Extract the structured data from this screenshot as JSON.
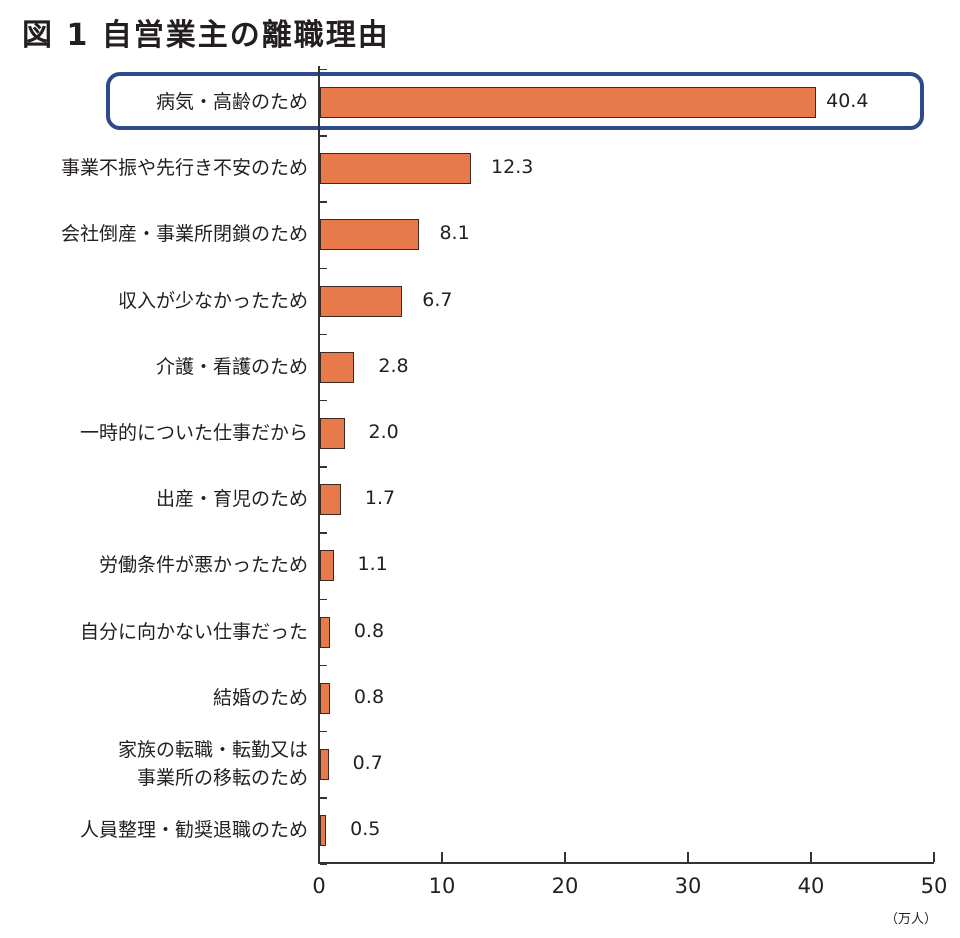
{
  "title": "図 1  自営業主の離職理由",
  "unit_label": "（万人）",
  "colors": {
    "bar": "#e8794b",
    "bar_border": "#3a2a22",
    "highlight_border": "#2e4a8c",
    "axis": "#333333"
  },
  "x_ticks": [
    "0",
    "10",
    "20",
    "30",
    "40",
    "50"
  ],
  "rows": [
    {
      "label": "病気・高齢のため",
      "value": "40.4"
    },
    {
      "label": "事業不振や先行き不安のため",
      "value": "12.3"
    },
    {
      "label": "会社倒産・事業所閉鎖のため",
      "value": "8.1"
    },
    {
      "label": "収入が少なかったため",
      "value": "6.7"
    },
    {
      "label": "介護・看護のため",
      "value": "2.8"
    },
    {
      "label": "一時的についた仕事だから",
      "value": "2.0"
    },
    {
      "label": "出産・育児のため",
      "value": "1.7"
    },
    {
      "label": "労働条件が悪かったため",
      "value": "1.1"
    },
    {
      "label": "自分に向かない仕事だった",
      "value": "0.8"
    },
    {
      "label": "結婚のため",
      "value": "0.8"
    },
    {
      "label": "家族の転職・転勤又は",
      "label2": "事業所の移転のため",
      "value": "0.7"
    },
    {
      "label": "人員整理・勧奨退職のため",
      "value": "0.5"
    }
  ],
  "chart_data": {
    "type": "bar",
    "orientation": "horizontal",
    "title": "図 1 自営業主の離職理由",
    "categories": [
      "病気・高齢のため",
      "事業不振や先行き不安のため",
      "会社倒産・事業所閉鎖のため",
      "収入が少なかったため",
      "介護・看護のため",
      "一時的についた仕事だから",
      "出産・育児のため",
      "労働条件が悪かったため",
      "自分に向かない仕事だった",
      "結婚のため",
      "家族の転職・転勤又は事業所の移転のため",
      "人員整理・勧奨退職のため"
    ],
    "values": [
      40.4,
      12.3,
      8.1,
      6.7,
      2.8,
      2.0,
      1.7,
      1.1,
      0.8,
      0.8,
      0.7,
      0.5
    ],
    "xlabel": "（万人）",
    "ylabel": "",
    "xlim": [
      0,
      50
    ],
    "x_ticks": [
      0,
      10,
      20,
      30,
      40,
      50
    ],
    "data_labels": true,
    "grid": false,
    "legend": null,
    "annotations": [
      "Top row (病気・高齢のため) highlighted with rounded blue box"
    ]
  }
}
